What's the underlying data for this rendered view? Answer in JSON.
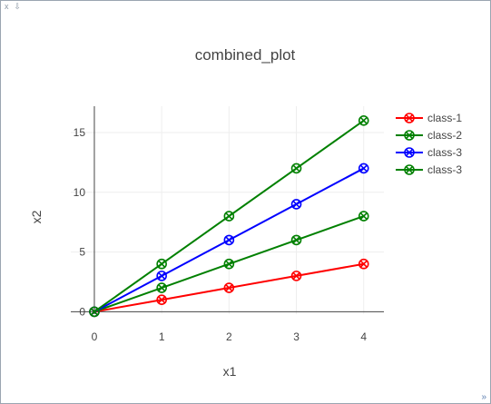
{
  "window": {
    "close_label": "x",
    "pin_label": "⇩",
    "resize_label": "»"
  },
  "chart_data": {
    "type": "line",
    "title": "combined_plot",
    "xlabel": "x1",
    "ylabel": "x2",
    "x_ticks": [
      "0",
      "1",
      "2",
      "3",
      "4"
    ],
    "y_ticks": [
      "0",
      "5",
      "10",
      "15"
    ],
    "x": [
      0,
      1,
      2,
      3,
      4
    ],
    "xlim": [
      -0.35,
      4.3
    ],
    "ylim": [
      -0.2,
      17.2
    ],
    "marker": "x-thin-circle-open",
    "legend_position": "right",
    "series": [
      {
        "name": "class-1",
        "color": "#ff0000",
        "values": [
          0,
          1,
          2,
          3,
          4
        ]
      },
      {
        "name": "class-2",
        "color": "#008000",
        "values": [
          0,
          2,
          4,
          6,
          8
        ]
      },
      {
        "name": "class-3",
        "color": "#0000ff",
        "values": [
          0,
          3,
          6,
          9,
          12
        ]
      },
      {
        "name": "class-3",
        "color": "#008000",
        "values": [
          0,
          4,
          8,
          12,
          16
        ]
      }
    ]
  }
}
